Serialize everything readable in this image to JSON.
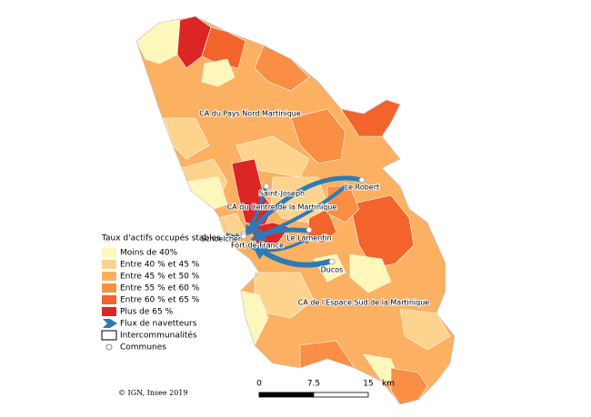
{
  "legend": {
    "title": "Taux d'actifs occupés stables",
    "classes": [
      {
        "label": "Moins de 40%",
        "color": "#fef7bb"
      },
      {
        "label": "Entre 40 % et 45 %",
        "color": "#fdd38d"
      },
      {
        "label": "Entre 45 % et 50 %",
        "color": "#fcb062"
      },
      {
        "label": "Entre 55 % et 60 %",
        "color": "#f98e44"
      },
      {
        "label": "Entre 60 % et 65 %",
        "color": "#f2642c"
      },
      {
        "label": "Plus de 65 %",
        "color": "#dc2626"
      }
    ],
    "flows": "Flux de navetteurs",
    "intercommunalities": "Intercommunalités",
    "communes": "Communes"
  },
  "regions": [
    "CA du Pays Nord Martinique",
    "CA du Centre de la Martinique",
    "CA de l'Espace Sud de la Martinique"
  ],
  "communes": [
    "Saint-Joseph",
    "Le Robert",
    "Schoelcher",
    "Fort-de-France",
    "Le Lamentin",
    "Ducos"
  ],
  "scale": {
    "ticks": [
      0,
      7.5,
      15
    ],
    "unit": "km"
  },
  "credit": "© IGN, Insee 2019"
}
